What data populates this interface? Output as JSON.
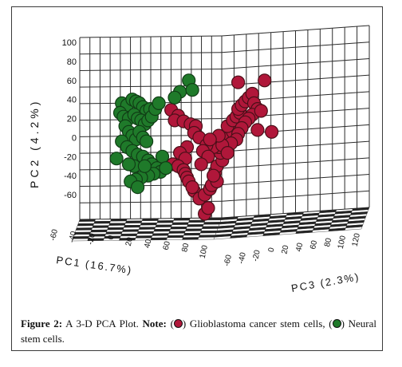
{
  "colors": {
    "glioblastoma": "#b0173a",
    "glioblastoma_edge": "#4a0f18",
    "neural": "#1f7a2a",
    "neural_edge": "#103d15",
    "grid": "#2a2a2a",
    "floor_light": "#ffffff",
    "floor_dark": "#222222"
  },
  "caption": {
    "figure_label": "Figure 2:",
    "title_text": "A 3-D PCA Plot.",
    "note_label": "Note:",
    "open_paren_1": "(",
    "glioblastoma_text": ") Glioblastoma cancer stem cells,",
    "open_paren_2": "(",
    "neural_text": ") Neural stem cells."
  },
  "chart_data": {
    "type": "scatter",
    "dimensions": 3,
    "axes": {
      "pc1": {
        "label": "PC1",
        "variance": "(16.7%)",
        "ticks": [
          "-60",
          "-40",
          "-20",
          "0",
          "20",
          "40",
          "60",
          "80",
          "100"
        ]
      },
      "pc2": {
        "label": "PC2",
        "variance": "(4.2%)",
        "ticks": [
          "100",
          "80",
          "60",
          "40",
          "20",
          "0",
          "-20",
          "-40",
          "-60"
        ]
      },
      "pc3": {
        "label": "PC3",
        "variance": "(2.3%)",
        "ticks": [
          "-60",
          "-40",
          "-20",
          "0",
          "20",
          "40",
          "60",
          "80",
          "100",
          "120"
        ]
      }
    },
    "series": [
      {
        "name": "Glioblastoma cancer stem cells",
        "color": "#b0173a",
        "points": [
          [
            -18,
            29
          ],
          [
            -10,
            23
          ],
          [
            -14,
            18
          ],
          [
            -4,
            17
          ],
          [
            4,
            14
          ],
          [
            10,
            12
          ],
          [
            8,
            5
          ],
          [
            14,
            0
          ],
          [
            0,
            -10
          ],
          [
            -8,
            -16
          ],
          [
            -2,
            -22
          ],
          [
            -16,
            -28
          ],
          [
            -10,
            -30
          ],
          [
            -4,
            -34
          ],
          [
            -2,
            -38
          ],
          [
            0,
            -42
          ],
          [
            2,
            -46
          ],
          [
            8,
            -56
          ],
          [
            14,
            -64
          ],
          [
            20,
            -60
          ],
          [
            26,
            -54
          ],
          [
            28,
            -50
          ],
          [
            34,
            -46
          ],
          [
            32,
            -36
          ],
          [
            34,
            -30
          ],
          [
            40,
            -24
          ],
          [
            38,
            -16
          ],
          [
            36,
            -10
          ],
          [
            42,
            -4
          ],
          [
            48,
            0
          ],
          [
            52,
            6
          ],
          [
            46,
            12
          ],
          [
            52,
            18
          ],
          [
            56,
            22
          ],
          [
            60,
            26
          ],
          [
            58,
            30
          ],
          [
            62,
            34
          ],
          [
            66,
            38
          ],
          [
            70,
            42
          ],
          [
            74,
            46
          ],
          [
            76,
            36
          ],
          [
            80,
            30
          ],
          [
            74,
            24
          ],
          [
            70,
            20
          ],
          [
            66,
            16
          ],
          [
            62,
            10
          ],
          [
            58,
            4
          ],
          [
            56,
            -2
          ],
          [
            50,
            -6
          ],
          [
            30,
            -10
          ],
          [
            22,
            -8
          ],
          [
            18,
            -14
          ],
          [
            24,
            -20
          ],
          [
            16,
            -28
          ],
          [
            84,
            28
          ],
          [
            88,
            60
          ],
          [
            58,
            58
          ],
          [
            40,
            -8
          ],
          [
            46,
            -16
          ],
          [
            80,
            8
          ],
          [
            96,
            6
          ],
          [
            20,
            -80
          ],
          [
            24,
            -74
          ],
          [
            30,
            -40
          ],
          [
            6,
            -52
          ],
          [
            36,
            2
          ],
          [
            26,
            -2
          ]
        ]
      },
      {
        "name": "Neural stem cells",
        "color": "#1f7a2a",
        "points": [
          [
            -74,
            36
          ],
          [
            -68,
            34
          ],
          [
            -62,
            40
          ],
          [
            -58,
            38
          ],
          [
            -54,
            36
          ],
          [
            -50,
            32
          ],
          [
            -46,
            28
          ],
          [
            -42,
            30
          ],
          [
            -76,
            26
          ],
          [
            -72,
            22
          ],
          [
            -66,
            20
          ],
          [
            -60,
            24
          ],
          [
            -56,
            20
          ],
          [
            -52,
            18
          ],
          [
            -48,
            14
          ],
          [
            -44,
            18
          ],
          [
            -40,
            22
          ],
          [
            -70,
            12
          ],
          [
            -66,
            6
          ],
          [
            -62,
            2
          ],
          [
            -58,
            -2
          ],
          [
            -54,
            6
          ],
          [
            -50,
            0
          ],
          [
            -46,
            -4
          ],
          [
            -74,
            -4
          ],
          [
            -68,
            -10
          ],
          [
            -62,
            -14
          ],
          [
            -56,
            -18
          ],
          [
            -50,
            -20
          ],
          [
            -44,
            -24
          ],
          [
            -40,
            -28
          ],
          [
            -34,
            -32
          ],
          [
            -30,
            -36
          ],
          [
            -38,
            -38
          ],
          [
            -44,
            -40
          ],
          [
            -52,
            -42
          ],
          [
            -58,
            -44
          ],
          [
            -64,
            -46
          ],
          [
            -56,
            -52
          ],
          [
            -80,
            -22
          ],
          [
            -28,
            -20
          ],
          [
            -24,
            -32
          ],
          [
            -36,
            30
          ],
          [
            -32,
            36
          ],
          [
            2,
            60
          ],
          [
            -8,
            48
          ],
          [
            6,
            50
          ],
          [
            -14,
            42
          ],
          [
            -60,
            -30
          ],
          [
            -48,
            -30
          ],
          [
            -66,
            -28
          ]
        ]
      }
    ]
  }
}
